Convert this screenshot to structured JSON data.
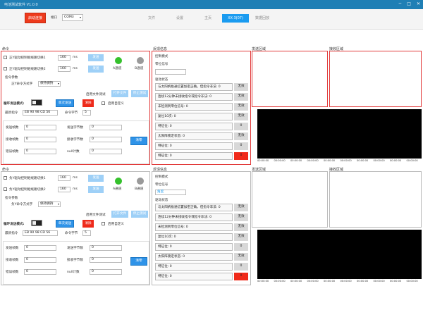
{
  "app": {
    "title": "电池测试软件 V1.0.0"
  },
  "toolbar": {
    "start_button": "启动连接",
    "port_label": "端口",
    "port_value": "COM3",
    "tabs": [
      {
        "label": "文件",
        "active": false
      },
      {
        "label": "设置",
        "active": false
      },
      {
        "label": "主页",
        "active": false
      },
      {
        "label": "XX-3(07)",
        "active": true
      },
      {
        "label": "数据回放",
        "active": false
      }
    ]
  },
  "command_panels": [
    {
      "title": "命令",
      "row1_label": "正Y驱动控制继线路切换1",
      "row1_value": "160",
      "row1_unit": "ms",
      "row1_button": "发送",
      "row2_label": "正Y驱动控制继线路切换2",
      "row2_value": "160",
      "row2_unit": "ms",
      "row2_button": "发送",
      "led_a": "A通道",
      "led_b": "B通道",
      "params_title": "指令参数",
      "mode_label": "正Y命令方式字",
      "mode_value": "保持保持",
      "file_test_label": "启用文件测试",
      "open_file": "打开文件",
      "stop_test": "停止测试",
      "cycle_label": "循环发送模式:",
      "single_send": "单次发送",
      "clear": "清除",
      "custom_label": "启用自定义",
      "latest_label": "最新指令",
      "latest_value": "EB 90 98 CD 56",
      "bytes_label": "命令字节",
      "bytes_value": "5",
      "stats": [
        {
          "l1": "发送帧数",
          "v1": "0",
          "l2": "发送字节数",
          "v2": "0"
        },
        {
          "l1": "接收帧数",
          "v1": "0",
          "l2": "接收字节数",
          "v2": "0"
        },
        {
          "l1": "错误帧数",
          "v1": "0",
          "l2": "null计数",
          "v2": "0"
        }
      ],
      "clear_stats": "清零"
    },
    {
      "title": "命令",
      "row1_label": "负Y驱动控制继线路切换1",
      "row1_value": "160",
      "row1_unit": "ms",
      "row1_button": "发送",
      "row2_label": "负Y驱动控制继线路切换2",
      "row2_value": "160",
      "row2_unit": "ms",
      "row2_button": "发送",
      "led_a": "A通道",
      "led_b": "B通道",
      "params_title": "指令参数",
      "mode_label": "负Y命令方式字",
      "mode_value": "保持保持",
      "file_test_label": "启用文件测试",
      "open_file": "打开文件",
      "stop_test": "停止测试",
      "cycle_label": "循环发送模式:",
      "single_send": "单次发送",
      "clear": "清除",
      "custom_label": "启用自定义",
      "latest_label": "最新指令",
      "latest_value": "EB 90 98 CD 56",
      "bytes_label": "命令字节",
      "bytes_value": "5",
      "stats": [
        {
          "l1": "发送帧数",
          "v1": "0",
          "l2": "发送字节数",
          "v2": "0"
        },
        {
          "l1": "接收帧数",
          "v1": "0",
          "l2": "接收字节数",
          "v2": "0"
        },
        {
          "l1": "错误帧数",
          "v1": "0",
          "l2": "null计数",
          "v2": "0"
        }
      ],
      "clear_stats": "清零"
    }
  ],
  "feedback_panels": [
    {
      "title": "反馈信息",
      "f1": "控制模式",
      "f2": "零位信号",
      "f3": "",
      "status_title": "驱动状态",
      "rows": [
        {
          "label": "与太阳帆板通信置加密正确。但指令非法: 0",
          "value": "无效",
          "red": false
        },
        {
          "label": "连续12分钟未接收指令或指令非法: 0",
          "value": "无效",
          "red": false
        },
        {
          "label": "未检测到零位信号: 0",
          "value": "无效",
          "red": false
        },
        {
          "label": "复位10次: 0",
          "value": "无效",
          "red": false
        },
        {
          "label": "特征位: 0",
          "value": "0",
          "red": false
        },
        {
          "label": "太阳阵锁定状态: 0",
          "value": "无效",
          "red": false
        },
        {
          "label": "特征位: 0",
          "value": "0",
          "red": false
        },
        {
          "label": "特征位: 0",
          "value": "0",
          "red": true
        }
      ]
    },
    {
      "title": "反馈信息",
      "f1": "控制模式",
      "f2": "零位信号",
      "f3": "角度",
      "status_title": "驱动状态",
      "rows": [
        {
          "label": "与太阳帆板通信置加密正确。但指令非法: 0",
          "value": "无效",
          "red": false
        },
        {
          "label": "连续12分钟未接收指令或指令非法: 0",
          "value": "无效",
          "red": false
        },
        {
          "label": "未检测到零位信号: 0",
          "value": "无效",
          "red": false
        },
        {
          "label": "复位10次: 0",
          "value": "无效",
          "red": false
        },
        {
          "label": "特征位: 0",
          "value": "0",
          "red": false
        },
        {
          "label": "太阳阵锁定状态: 0",
          "value": "无效",
          "red": false
        },
        {
          "label": "特征位: 0",
          "value": "0",
          "red": false
        },
        {
          "label": "特征位: 0",
          "value": "0",
          "red": true
        }
      ]
    }
  ],
  "areas": {
    "send": "发送区域",
    "recv": "接收区域"
  },
  "time_ticks": [
    "00:00:00",
    "00:00:00",
    "00:00:00",
    "00:00:00",
    "00:00:00",
    "00:00:00",
    "00:00:00",
    "00:00:00",
    "00:00:00",
    "00:00:00"
  ],
  "colors": {
    "accent": "#1a9bf0",
    "red": "#ee3a1c",
    "led_green": "#35c12c",
    "led_gray": "#9a9a9a"
  }
}
